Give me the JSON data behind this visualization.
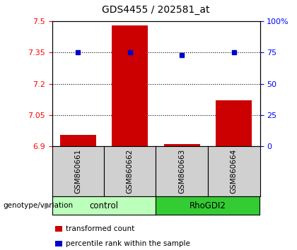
{
  "title": "GDS4455 / 202581_at",
  "samples": [
    "GSM860661",
    "GSM860662",
    "GSM860663",
    "GSM860664"
  ],
  "bar_values": [
    6.953,
    7.481,
    6.912,
    7.12
  ],
  "percentile_values": [
    75,
    75,
    73,
    75
  ],
  "bar_color": "#cc0000",
  "dot_color": "#0000cc",
  "ylim_left": [
    6.9,
    7.5
  ],
  "ylim_right": [
    0,
    100
  ],
  "yticks_left": [
    6.9,
    7.05,
    7.2,
    7.35,
    7.5
  ],
  "yticks_right": [
    0,
    25,
    50,
    75,
    100
  ],
  "ytick_labels_right": [
    "0",
    "25",
    "50",
    "75",
    "100%"
  ],
  "hlines": [
    7.05,
    7.2,
    7.35
  ],
  "groups": [
    {
      "label": "control",
      "indices": [
        0,
        1
      ],
      "color": "#bbffbb"
    },
    {
      "label": "RhoGDI2",
      "indices": [
        2,
        3
      ],
      "color": "#33cc33"
    }
  ],
  "group_label": "genotype/variation",
  "legend_items": [
    {
      "color": "#cc0000",
      "label": "transformed count"
    },
    {
      "color": "#0000cc",
      "label": "percentile rank within the sample"
    }
  ],
  "bar_width": 0.7,
  "x_positions": [
    0,
    1,
    2,
    3
  ],
  "sample_label_color": "#d0d0d0"
}
